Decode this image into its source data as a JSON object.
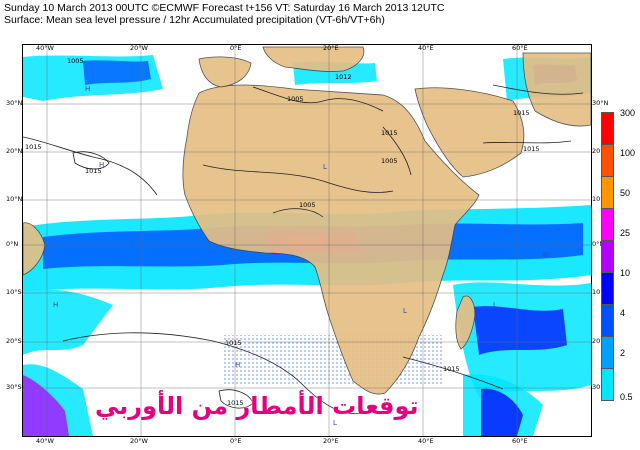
{
  "header": {
    "line1": "Sunday 10 March 2013 00UTC ©ECMWF Forecast t+156 VT: Saturday 16 March 2013 12UTC",
    "line2": "Surface: Mean sea level pressure / 12hr Accumulated precipitation (VT-6h/VT+6h)"
  },
  "axes": {
    "lon_top": [
      "40°W",
      "20°W",
      "0°E",
      "20°E",
      "40°E",
      "60°E"
    ],
    "lon_bottom": [
      "40°W",
      "20°W",
      "0°E",
      "20°E",
      "40°E",
      "60°E"
    ],
    "lat_left": [
      "30°N",
      "20°N",
      "10°N",
      "0°N",
      "10°S",
      "20°S",
      "30°S"
    ],
    "lat_right": [
      "30°N",
      "20°N",
      "10°N",
      "0°N",
      "10°S",
      "20°S",
      "30°S"
    ]
  },
  "legend": {
    "labels": [
      "300",
      "100",
      "50",
      "25",
      "10",
      "4",
      "2",
      "0.5"
    ],
    "colors": [
      "#ff0000",
      "#ff5000",
      "#ff9600",
      "#ff00ff",
      "#b400ff",
      "#0000ff",
      "#0050ff",
      "#00a0ff",
      "#00e6ff"
    ]
  },
  "isobars": [
    "1005",
    "1012",
    "1015",
    "1015",
    "1005",
    "1015",
    "1005",
    "1005",
    "1015",
    "1015",
    "1015",
    "1015",
    "1015"
  ],
  "pressure_centres": [
    "H",
    "H",
    "L",
    "H",
    "H",
    "L",
    "H",
    "L",
    "L"
  ],
  "colors": {
    "land": "#e5be85",
    "ocean": "#ffffff",
    "grid": "#666666",
    "watermark": "#e6007e"
  },
  "watermark": "توقعات الأمطار من الأوربي"
}
